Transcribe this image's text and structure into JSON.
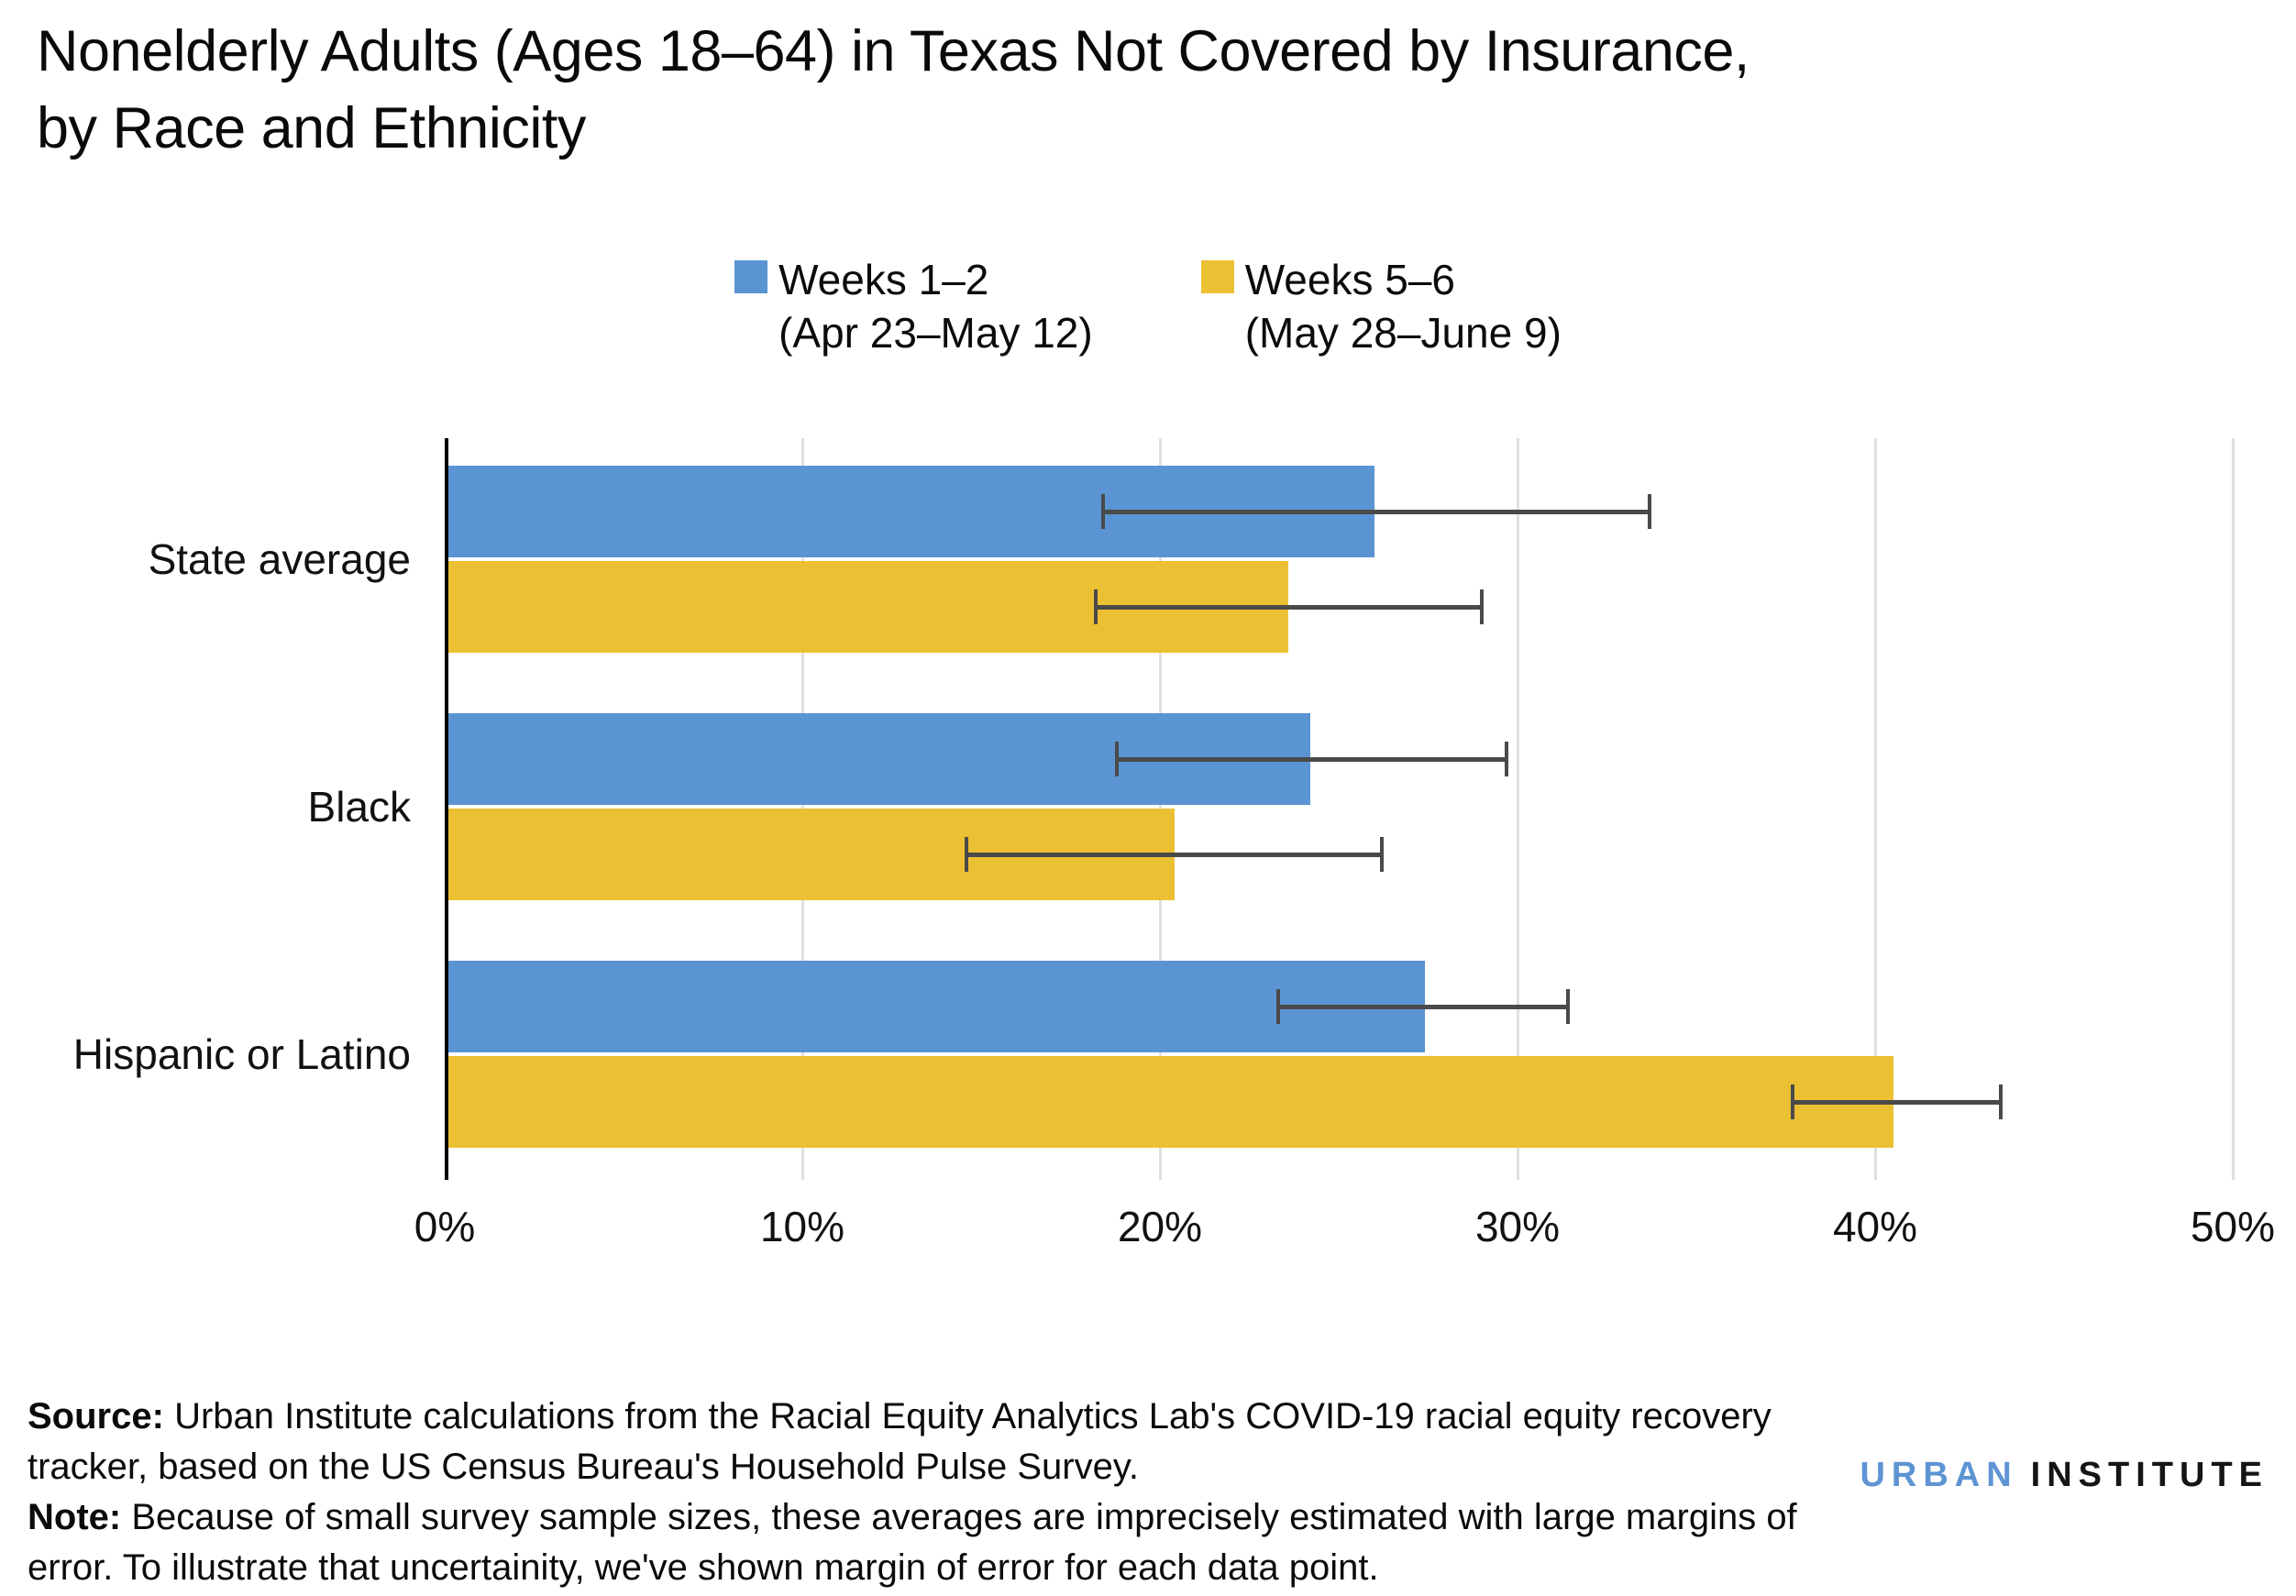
{
  "title": {
    "lines": [
      "Nonelderly Adults (Ages 18–64) in Texas Not Covered by Insurance,",
      "by Race and Ethnicity"
    ]
  },
  "legend": [
    {
      "label": "Weeks 1–2",
      "sublabel": "(Apr 23–May 12)",
      "color": "#5b94d2"
    },
    {
      "label": "Weeks 5–6",
      "sublabel": "(May 28–June 9)",
      "color": "#ecc033"
    }
  ],
  "chart_data": {
    "type": "bar",
    "orientation": "horizontal",
    "categories": [
      "State average",
      "Black",
      "Hispanic or Latino"
    ],
    "series": [
      {
        "name": "Weeks 1–2 (Apr 23–May 12)",
        "color": "#5b94d2",
        "values": [
          26.0,
          24.2,
          27.4
        ],
        "error_low": [
          18.4,
          18.8,
          23.3
        ],
        "error_high": [
          33.7,
          29.7,
          31.4
        ]
      },
      {
        "name": "Weeks 5–6 (May 28–June 9)",
        "color": "#ecc033",
        "values": [
          23.6,
          20.4,
          40.5
        ],
        "error_low": [
          18.2,
          14.6,
          37.7
        ],
        "error_high": [
          29.0,
          26.2,
          43.5
        ]
      }
    ],
    "x_ticks": [
      "0%",
      "10%",
      "20%",
      "30%",
      "40%",
      "50%"
    ],
    "x_tick_values": [
      0,
      10,
      20,
      30,
      40,
      50
    ],
    "xlim": [
      0,
      50
    ],
    "grid": true,
    "gridline_color": "#e0e0e0",
    "axis_color": "#000000",
    "error_bar_color": "#4a4a4a",
    "legend_position": "top-center",
    "ylabel": "",
    "xlabel": ""
  },
  "footer": {
    "source_label": "Source:",
    "source_text": "Urban Institute calculations from the Racial Equity Analytics Lab's COVID-19 racial equity recovery tracker, based on the US Census Bureau's Household Pulse Survey.",
    "note_label": "Note:",
    "note_text": "Because of small survey sample sizes, these averages are imprecisely estimated with large margins of error. To illustrate that uncertainity, we've shown margin of error for each data point.",
    "logo": {
      "part1": "URBAN",
      "part2": "INSTITUTE",
      "part1_color": "#5e94d3",
      "part2_color": "#151515"
    }
  }
}
